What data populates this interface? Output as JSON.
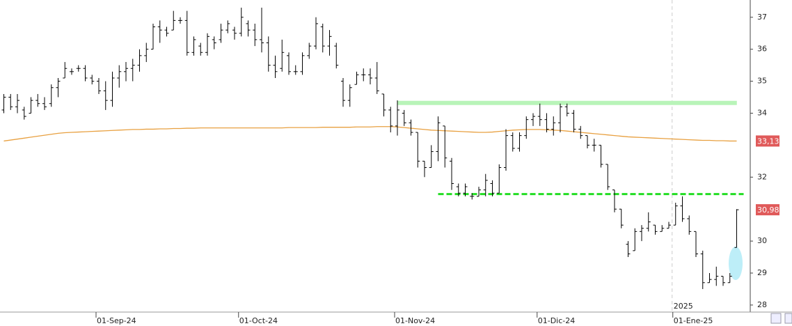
{
  "chart_data": {
    "type": "ohlc",
    "categories": [
      null,
      null,
      null,
      null,
      null,
      null,
      null,
      null,
      null,
      null,
      null,
      null,
      null,
      null,
      "01-Sep-24",
      null,
      null,
      null,
      null,
      null,
      null,
      null,
      null,
      null,
      null,
      null,
      null,
      null,
      null,
      null,
      null,
      null,
      null,
      null,
      null,
      "01-Oct-24",
      null,
      null,
      null,
      null,
      null,
      null,
      null,
      null,
      null,
      null,
      null,
      null,
      null,
      null,
      null,
      null,
      null,
      null,
      null,
      null,
      null,
      null,
      "01-Nov-24",
      null,
      null,
      null,
      null,
      null,
      null,
      null,
      null,
      null,
      null,
      null,
      null,
      null,
      null,
      null,
      null,
      null,
      null,
      null,
      null,
      "01-Dic-24",
      null,
      null,
      null,
      null,
      null,
      null,
      null,
      null,
      null,
      null,
      null,
      null,
      null,
      null,
      null,
      null,
      null,
      null,
      null,
      "01-Ene-25",
      null,
      null,
      null,
      null,
      null,
      null,
      null,
      null,
      null
    ],
    "open": [
      34.1,
      34.5,
      34.2,
      34.1,
      34.0,
      34.4,
      34.3,
      34.3,
      34.8,
      35.1,
      35.3,
      35.4,
      35.4,
      35.1,
      35.0,
      34.7,
      34.4,
      35.1,
      35.3,
      35.4,
      35.5,
      35.8,
      36.0,
      36.7,
      36.6,
      36.6,
      36.9,
      36.9,
      35.9,
      36.1,
      35.9,
      36.3,
      36.3,
      36.6,
      36.6,
      36.5,
      36.8,
      36.6,
      36.3,
      36.2,
      35.5,
      35.4,
      35.8,
      35.3,
      35.3,
      35.8,
      36.1,
      36.7,
      36.1,
      36.1,
      35.0,
      34.4,
      34.9,
      35.2,
      35.2,
      35.1,
      34.6,
      34.1,
      33.6,
      34.0,
      33.7,
      33.4,
      32.5,
      32.3,
      32.8,
      33.6,
      32.5,
      31.7,
      31.5,
      31.4,
      31.4,
      31.6,
      31.8,
      31.5,
      32.3,
      33.3,
      32.9,
      33.3,
      33.8,
      33.9,
      33.8,
      33.5,
      33.7,
      34.2,
      34.0,
      33.5,
      33.3,
      33.0,
      33.0,
      32.4,
      31.6,
      31.0,
      29.9,
      29.7,
      30.3,
      30.4,
      30.5,
      30.3,
      30.4,
      30.5,
      31.1,
      30.7,
      30.3,
      29.6,
      28.7,
      28.8,
      28.9,
      28.7,
      29.8
    ],
    "high": [
      34.6,
      34.6,
      34.6,
      34.2,
      34.5,
      34.6,
      34.5,
      34.9,
      35.1,
      35.6,
      35.4,
      35.5,
      35.5,
      35.2,
      35.1,
      35.0,
      35.3,
      35.5,
      35.6,
      35.7,
      36.0,
      36.2,
      36.8,
      36.9,
      36.7,
      37.2,
      37.0,
      37.2,
      36.4,
      36.2,
      36.5,
      36.4,
      36.8,
      36.9,
      36.7,
      37.3,
      36.9,
      36.8,
      37.3,
      36.4,
      35.8,
      36.3,
      35.9,
      35.5,
      35.9,
      36.2,
      37.0,
      36.8,
      36.6,
      36.2,
      35.1,
      34.9,
      35.3,
      35.4,
      35.4,
      35.6,
      34.6,
      34.2,
      34.4,
      34.1,
      33.8,
      33.4,
      32.5,
      33.0,
      33.9,
      33.6,
      32.6,
      31.8,
      31.8,
      31.5,
      31.7,
      32.1,
      31.9,
      32.4,
      33.5,
      33.4,
      33.4,
      33.9,
      34.0,
      34.3,
      34.0,
      33.9,
      34.3,
      34.3,
      34.1,
      33.6,
      33.3,
      33.2,
      33.0,
      32.4,
      31.6,
      31.0,
      30.0,
      30.4,
      30.5,
      30.9,
      30.5,
      30.5,
      30.6,
      31.2,
      31.4,
      30.8,
      30.3,
      29.7,
      29.0,
      29.2,
      28.9,
      29.0,
      31.0
    ],
    "low": [
      34.0,
      34.1,
      34.0,
      33.8,
      34.0,
      34.2,
      34.1,
      34.2,
      34.5,
      35.1,
      35.2,
      35.3,
      35.0,
      34.9,
      34.6,
      34.1,
      34.2,
      34.8,
      35.0,
      35.0,
      35.3,
      35.6,
      36.0,
      36.2,
      36.4,
      36.6,
      36.8,
      35.8,
      35.8,
      35.8,
      35.8,
      36.0,
      36.2,
      36.5,
      36.3,
      36.4,
      36.4,
      36.1,
      35.9,
      35.3,
      35.1,
      35.3,
      35.2,
      35.2,
      35.2,
      35.7,
      36.0,
      35.9,
      35.8,
      35.4,
      34.2,
      34.2,
      34.9,
      35.0,
      34.9,
      34.6,
      33.9,
      33.4,
      33.3,
      33.6,
      33.3,
      32.3,
      32.0,
      32.3,
      32.5,
      32.3,
      31.6,
      31.4,
      31.4,
      31.3,
      31.4,
      31.4,
      31.4,
      31.5,
      32.2,
      32.8,
      32.8,
      33.2,
      33.6,
      33.6,
      33.4,
      33.3,
      33.4,
      33.9,
      33.4,
      33.2,
      32.9,
      32.8,
      32.3,
      31.6,
      30.9,
      30.4,
      29.5,
      29.7,
      30.0,
      30.3,
      30.2,
      30.3,
      30.4,
      30.5,
      30.6,
      30.2,
      29.5,
      28.5,
      28.7,
      28.6,
      28.6,
      28.7,
      29.8
    ],
    "close": [
      34.5,
      34.2,
      34.4,
      33.9,
      34.4,
      34.3,
      34.2,
      34.8,
      35.0,
      35.4,
      35.3,
      35.4,
      35.1,
      35.0,
      34.7,
      34.4,
      35.1,
      35.3,
      35.4,
      35.5,
      35.8,
      36.0,
      36.7,
      36.6,
      36.5,
      36.9,
      36.9,
      35.9,
      36.3,
      35.9,
      36.4,
      36.2,
      36.6,
      36.8,
      36.5,
      37.0,
      36.6,
      36.3,
      36.2,
      35.5,
      35.3,
      35.9,
      35.3,
      35.3,
      35.8,
      36.1,
      36.8,
      36.1,
      36.4,
      35.5,
      34.4,
      34.8,
      35.2,
      35.2,
      35.1,
      34.7,
      34.1,
      33.6,
      34.1,
      33.7,
      33.4,
      32.5,
      32.3,
      32.8,
      33.7,
      32.6,
      31.8,
      31.5,
      31.7,
      31.4,
      31.6,
      31.9,
      31.5,
      32.3,
      33.3,
      32.9,
      33.3,
      33.8,
      33.9,
      33.8,
      33.5,
      33.7,
      34.2,
      34.0,
      33.5,
      33.3,
      33.0,
      33.0,
      32.4,
      31.7,
      31.0,
      30.5,
      29.6,
      30.3,
      30.4,
      30.6,
      30.3,
      30.4,
      30.5,
      31.1,
      30.7,
      30.3,
      29.6,
      28.7,
      28.8,
      28.9,
      28.7,
      28.9,
      30.98
    ],
    "color": "#000000",
    "ma": {
      "color": "#e8a040",
      "values": [
        33.13,
        33.16,
        33.19,
        33.22,
        33.25,
        33.28,
        33.31,
        33.34,
        33.37,
        33.39,
        33.4,
        33.41,
        33.42,
        33.43,
        33.44,
        33.45,
        33.46,
        33.47,
        33.48,
        33.49,
        33.49,
        33.5,
        33.5,
        33.51,
        33.51,
        33.52,
        33.52,
        33.53,
        33.53,
        33.54,
        33.54,
        33.54,
        33.54,
        33.54,
        33.54,
        33.54,
        33.54,
        33.54,
        33.54,
        33.54,
        33.54,
        33.54,
        33.55,
        33.55,
        33.55,
        33.55,
        33.55,
        33.56,
        33.56,
        33.56,
        33.56,
        33.56,
        33.57,
        33.57,
        33.57,
        33.58,
        33.58,
        33.58,
        33.57,
        33.55,
        33.53,
        33.51,
        33.49,
        33.47,
        33.46,
        33.45,
        33.44,
        33.43,
        33.42,
        33.41,
        33.4,
        33.4,
        33.41,
        33.43,
        33.45,
        33.47,
        33.48,
        33.49,
        33.49,
        33.49,
        33.48,
        33.47,
        33.46,
        33.44,
        33.42,
        33.4,
        33.38,
        33.36,
        33.34,
        33.32,
        33.3,
        33.28,
        33.26,
        33.25,
        33.24,
        33.23,
        33.22,
        33.21,
        33.2,
        33.19,
        33.18,
        33.17,
        33.16,
        33.15,
        33.15,
        33.14,
        33.14,
        33.13,
        33.13
      ]
    },
    "hlines": [
      {
        "value": 34.32,
        "from": 58,
        "to": 107,
        "color": "#b8f4b8",
        "style": "solid"
      },
      {
        "value": 31.47,
        "from": 64,
        "to": 108,
        "color": "#22dd22",
        "style": "dashed"
      }
    ],
    "price_labels": [
      {
        "value": 33.13,
        "label": "33,13",
        "color": "#e05a5a"
      },
      {
        "value": 30.98,
        "label": "30,98",
        "color": "#e05a5a"
      }
    ],
    "year_marker": {
      "index": 99,
      "text": "2025"
    },
    "ylim": [
      27.78,
      37.54
    ],
    "yticks": [
      28,
      29,
      30,
      32,
      34,
      35,
      36,
      37
    ]
  }
}
